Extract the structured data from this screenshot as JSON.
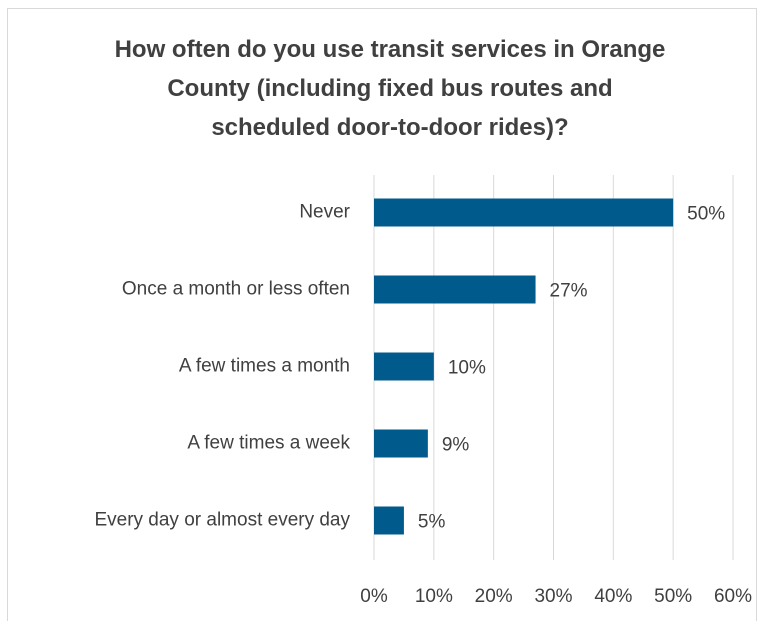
{
  "chart_data": {
    "type": "bar",
    "orientation": "horizontal",
    "title": "How often do you use transit services in Orange County (including fixed bus routes and scheduled door-to-door rides)?",
    "categories": [
      "Never",
      "Once a month or less often",
      "A few times a month",
      "A few times a week",
      "Every day or almost every day"
    ],
    "values": [
      50,
      27,
      10,
      9,
      5
    ],
    "value_labels": [
      "50%",
      "27%",
      "10%",
      "9%",
      "5%"
    ],
    "color": "#005a8c",
    "xlim": [
      0,
      60
    ],
    "xticks": [
      {
        "value": 0,
        "label": "0%"
      },
      {
        "value": 10,
        "label": "10%"
      },
      {
        "value": 20,
        "label": "20%"
      },
      {
        "value": 30,
        "label": "30%"
      },
      {
        "value": 40,
        "label": "40%"
      },
      {
        "value": 50,
        "label": "50%"
      },
      {
        "value": 60,
        "label": "60%"
      }
    ],
    "grid": true
  }
}
